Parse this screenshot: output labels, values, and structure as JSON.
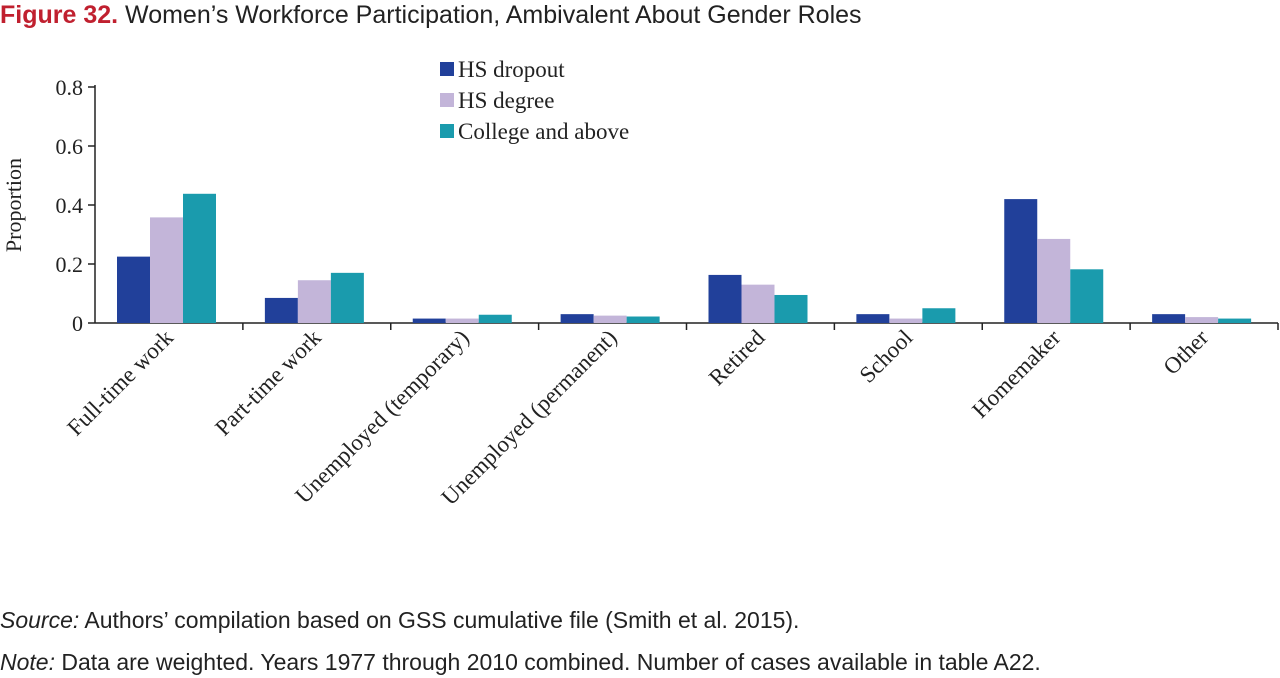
{
  "figure": {
    "number": "Figure 32.",
    "title": "Women’s Workforce Participation, Ambivalent About Gender Roles"
  },
  "source": {
    "label": "Source:",
    "text": "Authors’ compilation based on GSS cumulative file (Smith et al. 2015)."
  },
  "note": {
    "label": "Note:",
    "text": "Data are weighted. Years 1977 through 2010 combined. Number of cases available in table A22."
  },
  "chart_data": {
    "type": "bar",
    "title": "Women’s Workforce Participation, Ambivalent About Gender Roles",
    "xlabel": "",
    "ylabel": "Proportion",
    "ylim": [
      0,
      0.8
    ],
    "yticks": [
      "0",
      "0.2",
      "0.4",
      "0.6",
      "0.8"
    ],
    "yticks_values": [
      0,
      0.2,
      0.4,
      0.6,
      0.8
    ],
    "grid": false,
    "legend_position": "top-center",
    "categories": [
      "Full-time work",
      "Part-time work",
      "Unemployed (temporary)",
      "Unemployed (permanent)",
      "Retired",
      "School",
      "Homemaker",
      "Other"
    ],
    "series": [
      {
        "name": "HS dropout",
        "color": "#21409a",
        "values": [
          0.225,
          0.085,
          0.015,
          0.03,
          0.163,
          0.03,
          0.42,
          0.03
        ]
      },
      {
        "name": "HS degree",
        "color": "#c3b5d9",
        "values": [
          0.358,
          0.145,
          0.015,
          0.025,
          0.13,
          0.015,
          0.285,
          0.02
        ]
      },
      {
        "name": "College and above",
        "color": "#1a9bad",
        "values": [
          0.438,
          0.17,
          0.028,
          0.022,
          0.095,
          0.05,
          0.182,
          0.015
        ]
      }
    ]
  }
}
